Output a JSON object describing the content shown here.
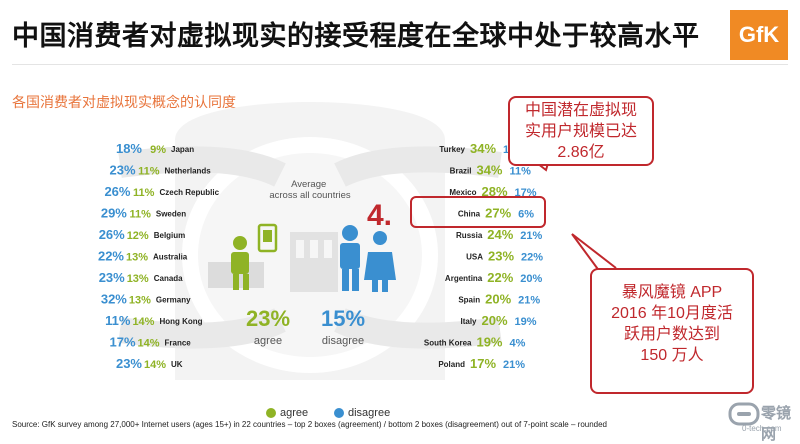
{
  "title": "中国消费者对虚拟现实的接受程度在全球中处于较高水平",
  "logo": "GfK",
  "subtitle": "各国消费者对虚拟现实概念的认同度",
  "center": {
    "label": "Average across all countries",
    "agree_value": "23%",
    "agree_label": "agree",
    "disagree_value": "15%",
    "disagree_label": "disagree"
  },
  "rank_annotation": "4.",
  "callout_top": [
    "中国潜在虚拟现",
    "实用户规模已达",
    "2.86亿"
  ],
  "callout_bottom": [
    "暴风魔镜 APP",
    "2016 年10月度活",
    "跃用户数达到",
    "150 万人"
  ],
  "legend": {
    "agree": "agree",
    "disagree": "disagree"
  },
  "source": "Source: GfK survey among 27,000+ Internet users (ages 15+) in 22 countries – top 2 boxes (agreement) / bottom 2 boxes (disagreement) out of 7-point scale – rounded",
  "watermark": {
    "brand": "零镜网",
    "url": "0-tech.com"
  },
  "colors": {
    "agree": "#8fb325",
    "disagree": "#3a8fd0",
    "highlight": "#c0282d",
    "title_accent": "#e8743b"
  },
  "chart_data": {
    "type": "table",
    "subtitle": "各国消费者对虚拟现实概念的认同度",
    "legend": [
      "agree",
      "disagree"
    ],
    "left": [
      {
        "country": "Japan",
        "agree": 18,
        "disagree": 9
      },
      {
        "country": "Netherlands",
        "agree": 23,
        "disagree": 11
      },
      {
        "country": "Czech Republic",
        "agree": 26,
        "disagree": 11
      },
      {
        "country": "Sweden",
        "agree": 29,
        "disagree": 11
      },
      {
        "country": "Belgium",
        "agree": 26,
        "disagree": 12
      },
      {
        "country": "Australia",
        "agree": 22,
        "disagree": 13
      },
      {
        "country": "Canada",
        "agree": 23,
        "disagree": 13
      },
      {
        "country": "Germany",
        "agree": 32,
        "disagree": 13
      },
      {
        "country": "Hong Kong",
        "agree": 11,
        "disagree": 14
      },
      {
        "country": "France",
        "agree": 17,
        "disagree": 14
      },
      {
        "country": "UK",
        "agree": 23,
        "disagree": 14
      }
    ],
    "right": [
      {
        "country": "Turkey",
        "agree": 34,
        "disagree": 15
      },
      {
        "country": "Brazil",
        "agree": 34,
        "disagree": 11
      },
      {
        "country": "Mexico",
        "agree": 28,
        "disagree": 17
      },
      {
        "country": "China",
        "agree": 27,
        "disagree": 6
      },
      {
        "country": "Russia",
        "agree": 24,
        "disagree": 21
      },
      {
        "country": "USA",
        "agree": 23,
        "disagree": 22
      },
      {
        "country": "Argentina",
        "agree": 22,
        "disagree": 20
      },
      {
        "country": "Spain",
        "agree": 20,
        "disagree": 21
      },
      {
        "country": "Italy",
        "agree": 20,
        "disagree": 19
      },
      {
        "country": "South Korea",
        "agree": 19,
        "disagree": 4
      },
      {
        "country": "Poland",
        "agree": 17,
        "disagree": 21
      }
    ],
    "average": {
      "agree": 23,
      "disagree": 15
    }
  }
}
